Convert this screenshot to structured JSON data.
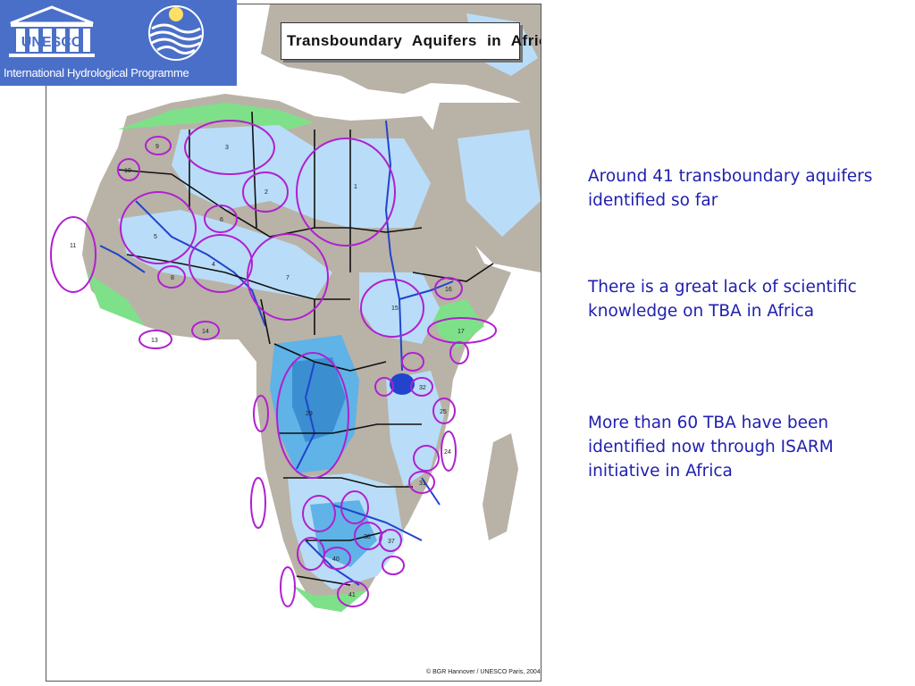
{
  "header": {
    "unesco_text": "UNESCO",
    "programme_label": "International Hydrological Programme"
  },
  "map": {
    "title": "Transboundary Aquifers in Africa",
    "credit": "© BGR Hannover / UNESCO Paris, 2004",
    "aquifer_numbers": [
      "1",
      "2",
      "3",
      "4",
      "5",
      "6",
      "7",
      "8",
      "9",
      "10",
      "11",
      "12",
      "13",
      "14",
      "15",
      "16",
      "17",
      "18",
      "19",
      "20",
      "21",
      "22",
      "23",
      "24",
      "25",
      "26",
      "27",
      "28",
      "29",
      "30",
      "31",
      "32",
      "33",
      "34",
      "35",
      "36",
      "37",
      "38",
      "39",
      "40",
      "41"
    ],
    "colors": {
      "land": "#b9b2a7",
      "aquifer_light": "#b9ddf8",
      "aquifer_medium": "#5fb3e6",
      "aquifer_dark": "#3b8fd0",
      "green_zone": "#7fe08a",
      "rivers": "#2244cc",
      "borders": "#111111",
      "aquifer_outline": "#b020d0"
    }
  },
  "bullets": [
    "Around 41 transboundary aquifers identified so far",
    "There is a great lack of scientific knowledge on TBA in Africa",
    "More than 60 TBA have been identified now through ISARM initiative in Africa"
  ],
  "text_color": "#2020b0"
}
